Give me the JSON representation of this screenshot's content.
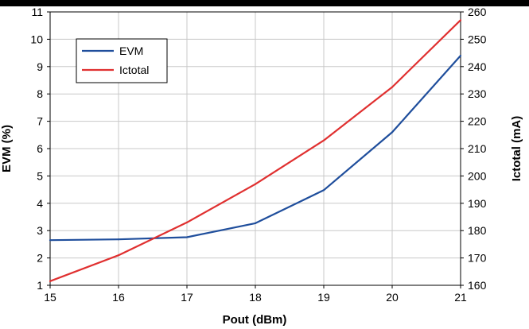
{
  "chart_data": {
    "type": "line",
    "title": "",
    "xlabel": "Pout (dBm)",
    "ylabel_left": "EVM (%)",
    "ylabel_right": "Ictotal (mA)",
    "x": [
      15,
      16,
      17,
      18,
      19,
      20,
      21
    ],
    "xlim": [
      15,
      21
    ],
    "ylim_left": [
      1,
      11
    ],
    "ylim_right": [
      160,
      260
    ],
    "xticks": [
      "15",
      "16",
      "17",
      "18",
      "19",
      "20",
      "21"
    ],
    "yticks_left": [
      "1",
      "2",
      "3",
      "4",
      "5",
      "6",
      "7",
      "8",
      "9",
      "10",
      "11"
    ],
    "yticks_right": [
      "160",
      "170",
      "180",
      "190",
      "200",
      "210",
      "220",
      "230",
      "240",
      "250",
      "260"
    ],
    "grid": true,
    "legend_position": "top-left",
    "series": [
      {
        "name": "EVM",
        "axis": "left",
        "color": "#1f4e9c",
        "values": [
          2.65,
          2.68,
          2.76,
          3.27,
          4.48,
          6.6,
          9.4
        ]
      },
      {
        "name": "Ictotal",
        "axis": "right",
        "color": "#e03030",
        "values": [
          161.5,
          171,
          183,
          197,
          213,
          232.5,
          257
        ]
      }
    ]
  }
}
